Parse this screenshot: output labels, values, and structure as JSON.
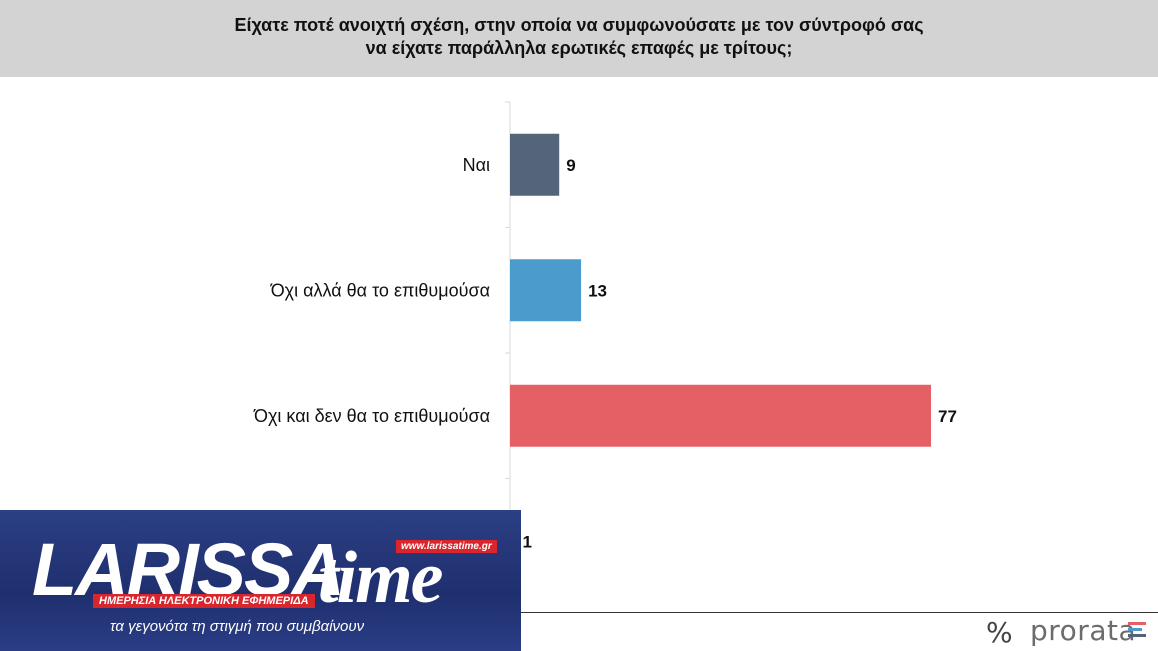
{
  "header": {
    "title_line1": "Είχατε ποτέ ανοιχτή σχέση, στην οποία να συμφωνούσατε με τον σύντροφό σας",
    "title_line2": "να είχατε παράλληλα ερωτικές επαφές με τρίτους;"
  },
  "chart_data": {
    "type": "bar",
    "orientation": "horizontal",
    "categories": [
      "Ναι",
      "Όχι αλλά θα το επιθυμούσα",
      "Όχι και δεν θα το επιθυμούσα",
      ""
    ],
    "values": [
      9,
      13,
      77,
      1
    ],
    "colors": [
      "#54657a",
      "#4c9bcd",
      "#e56065",
      "#54657a"
    ],
    "xlim": [
      0,
      100
    ],
    "grid": false,
    "legend": "none"
  },
  "logo": {
    "word": "LARISSA",
    "time": "time",
    "url": "www.larissatime.gr",
    "subtitle": "ΗΜΕΡΗΣΙΑ ΗΛΕΚΤΡΟΝΙΚΗ ΕΦΗΜΕΡΙΔΑ",
    "tagline": "τα γεγονότα τη στιγμή που συμβαίνουν"
  },
  "brand": {
    "symbol": "%",
    "name": "prorata",
    "bar_colors": [
      "#e56065",
      "#4c9bcd",
      "#54657a"
    ]
  }
}
